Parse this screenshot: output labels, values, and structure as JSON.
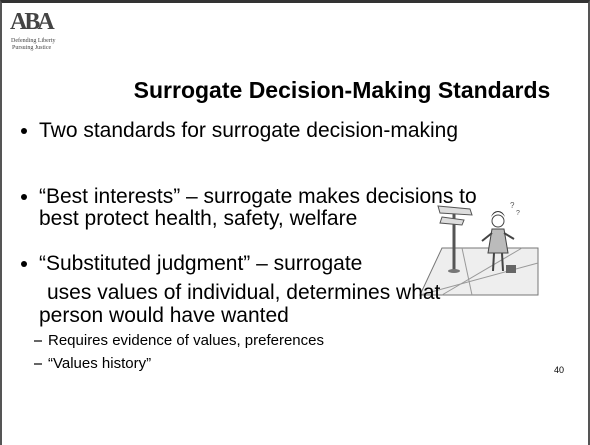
{
  "logo": {
    "mark": "ABA",
    "tagline": [
      "Defending Liberty",
      "Pursuing Justice"
    ]
  },
  "title": "Surrogate Decision-Making Standards",
  "bullets": [
    {
      "lines": [
        "Two standards for surrogate decision-making"
      ]
    },
    {
      "lines": [
        "“Best interests” – surrogate makes decisions to",
        "best protect health, safety, welfare"
      ]
    },
    {
      "lines": [
        "“Substituted judgment” – surrogate",
        "uses values of individual, determines what",
        "person would have wanted"
      ],
      "sub": [
        "Requires evidence of values, preferences",
        "“Values history”"
      ]
    }
  ],
  "page_number": 40
}
